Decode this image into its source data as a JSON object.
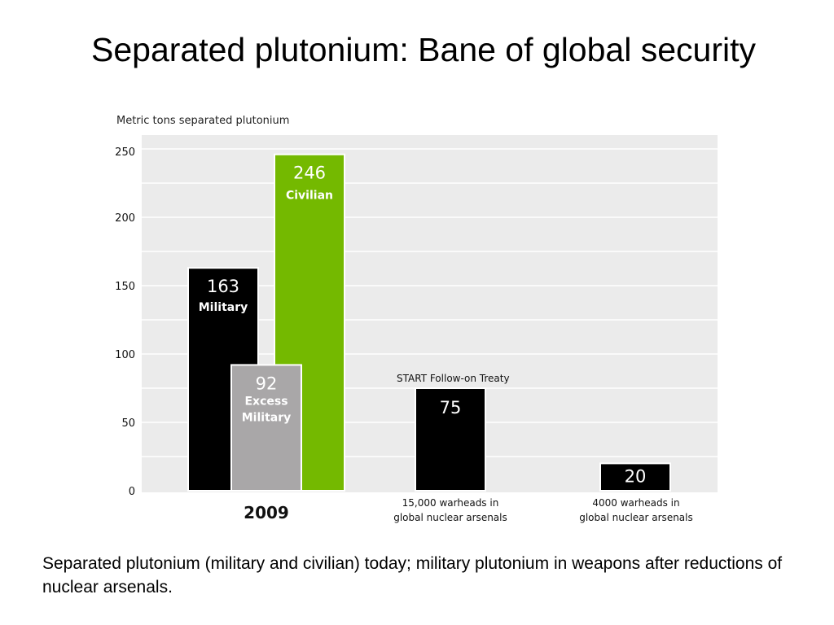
{
  "slide": {
    "title": "Separated plutonium: Bane of global security",
    "caption": "Separated plutonium (military and civilian) today; military plutonium in weapons after reductions of nuclear arsenals."
  },
  "colors": {
    "plot_background": "#ebebeb",
    "gridline": "#ffffff",
    "military": "#000000",
    "excess_military": "#a9a7a8",
    "civilian": "#74b900",
    "bar_outline": "#ffffff"
  },
  "chart_data": {
    "type": "bar",
    "title": "",
    "ylabel": "Metric tons separated plutonium",
    "ylim": [
      0,
      250
    ],
    "yticks": [
      0,
      50,
      100,
      150,
      200,
      250
    ],
    "grid": true,
    "groups": [
      {
        "label": "2009",
        "note": "",
        "bars": [
          {
            "key": "military",
            "value": 163,
            "name": "Military"
          },
          {
            "key": "excess",
            "value": 92,
            "name": "Excess Military",
            "overlay": true
          },
          {
            "key": "civilian",
            "value": 246,
            "name": "Civilian"
          }
        ]
      },
      {
        "label": "15,000 warheads in global nuclear arsenals",
        "note": "START Follow-on Treaty",
        "bars": [
          {
            "key": "warheads15000",
            "value": 75,
            "name": ""
          }
        ]
      },
      {
        "label": "4000 warheads in global nuclear arsenals",
        "note": "",
        "bars": [
          {
            "key": "warheads4000",
            "value": 20,
            "name": ""
          }
        ]
      }
    ]
  }
}
